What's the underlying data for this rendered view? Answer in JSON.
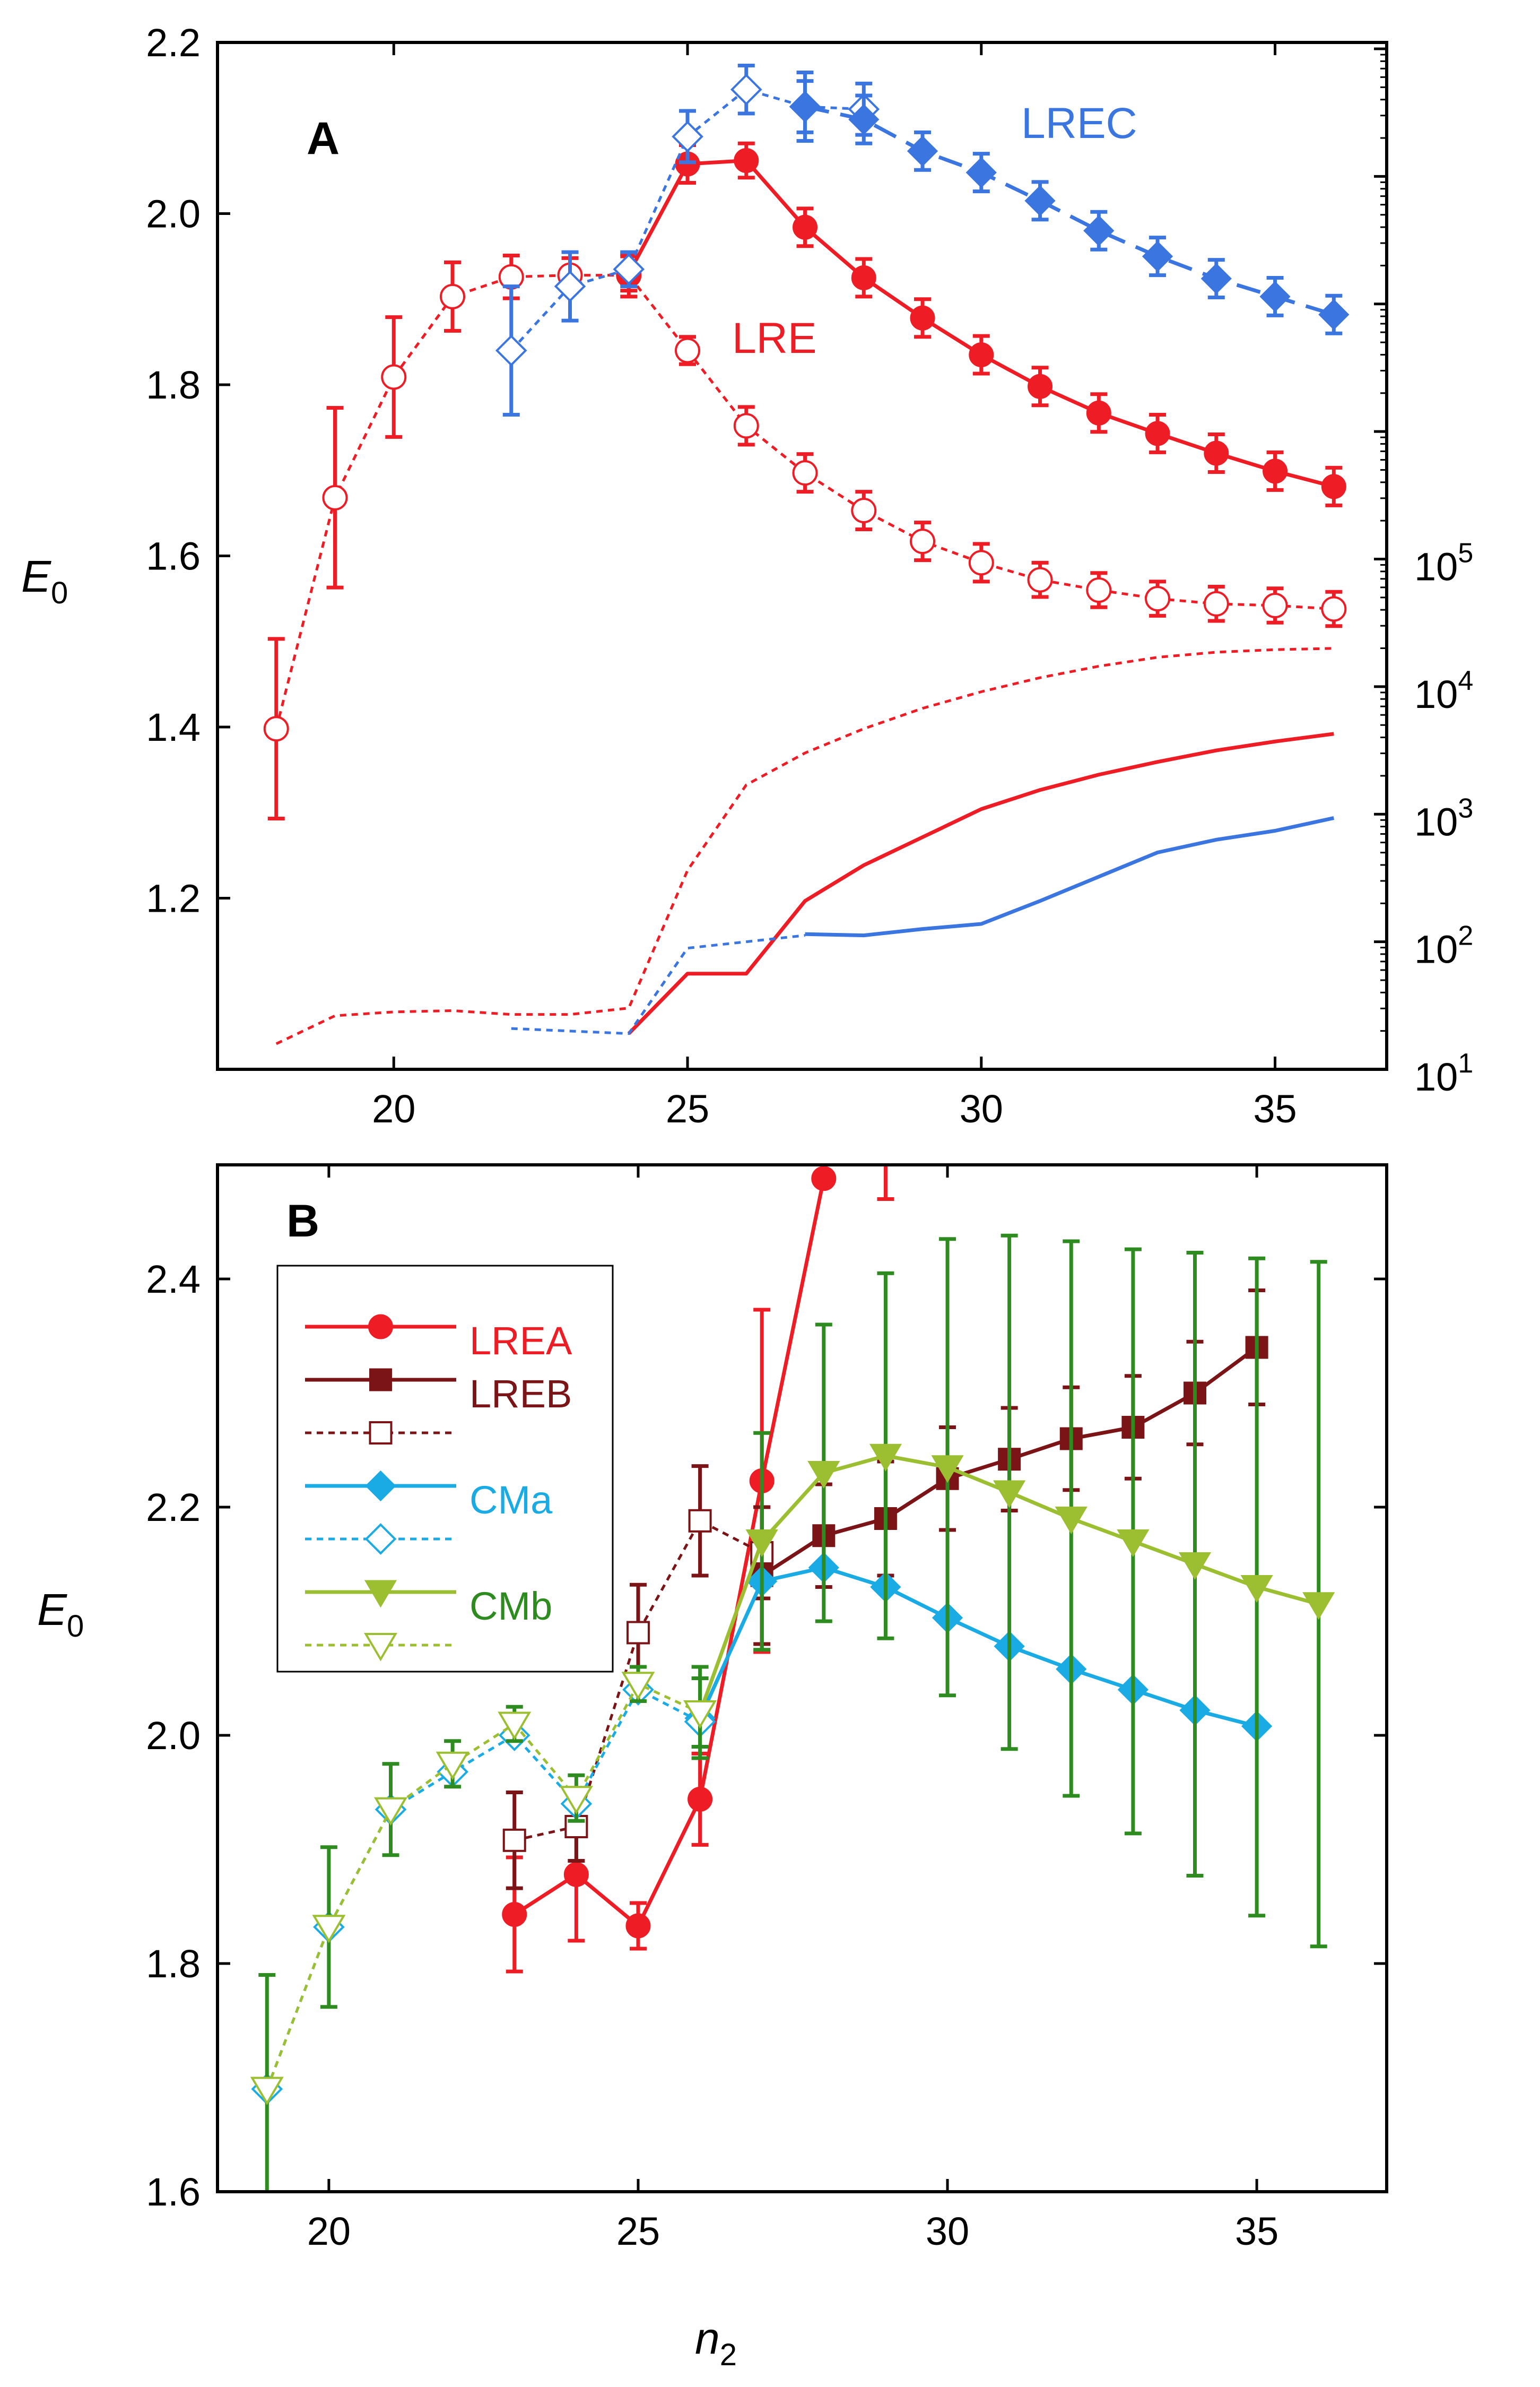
{
  "chart_data": [
    {
      "type": "line",
      "panel": "A",
      "title": "A",
      "xlabel": "",
      "ylabel": "E0",
      "ylabel_main": "E",
      "ylabel_sub": "0",
      "xlim": [
        17,
        36.9
      ],
      "ylim": [
        1.0,
        2.2
      ],
      "y2lim_log10": [
        1,
        9.05
      ],
      "x_ticks": [
        20,
        25,
        30,
        35
      ],
      "x_ticklabels": [
        "20",
        "25",
        "30",
        "35"
      ],
      "y_ticks": [
        1.2,
        1.4,
        1.6,
        1.8,
        2.0,
        2.2
      ],
      "y_ticklabels": [
        "1.2",
        "1.4",
        "1.6",
        "1.8",
        "2.0",
        "2.2"
      ],
      "y2_ticks": [
        {
          "exp": 1,
          "base": "10",
          "sup": "1"
        },
        {
          "exp": 2,
          "base": "10",
          "sup": "2"
        },
        {
          "exp": 3,
          "base": "10",
          "sup": "3"
        },
        {
          "exp": 4,
          "base": "10",
          "sup": "4"
        },
        {
          "exp": 5,
          "base": "10",
          "sup": "5"
        }
      ],
      "annotations": [
        {
          "text": "LRE",
          "x": 25.8,
          "y": 1.8,
          "color": "#ee1c24"
        },
        {
          "text": "LREC",
          "x": 30.7,
          "y": 2.1,
          "color": "#3a75e0"
        }
      ],
      "series": [
        {
          "name": "LRE open",
          "color": "#ee1c24",
          "dash": "dot",
          "marker": "circle-open",
          "x": [
            18,
            19,
            20,
            21,
            22,
            23,
            24,
            25,
            26,
            27,
            28,
            29,
            30,
            31,
            32,
            33,
            34,
            35,
            36
          ],
          "y": [
            1.398,
            1.668,
            1.809,
            1.903,
            1.926,
            1.928,
            1.928,
            1.84,
            1.752,
            1.697,
            1.653,
            1.617,
            1.592,
            1.572,
            1.56,
            1.55,
            1.544,
            1.542,
            1.538
          ],
          "err": [
            0.105,
            0.105,
            0.07,
            0.04,
            0.025,
            0.02,
            0.025,
            0.016,
            0.022,
            0.022,
            0.022,
            0.022,
            0.022,
            0.02,
            0.02,
            0.02,
            0.02,
            0.02,
            0.02
          ]
        },
        {
          "name": "LRE filled",
          "color": "#ee1c24",
          "dash": "solid",
          "marker": "circle",
          "x": [
            24,
            25,
            26,
            27,
            28,
            29,
            30,
            31,
            32,
            33,
            34,
            35,
            36
          ],
          "y": [
            1.93,
            2.058,
            2.062,
            1.984,
            1.925,
            1.878,
            1.835,
            1.798,
            1.767,
            1.743,
            1.72,
            1.699,
            1.681
          ],
          "err": [
            0.02,
            0.022,
            0.02,
            0.022,
            0.022,
            0.022,
            0.022,
            0.022,
            0.022,
            0.022,
            0.022,
            0.022,
            0.022
          ]
        },
        {
          "name": "LREC open",
          "color": "#3a75e0",
          "dash": "dot",
          "marker": "diamond-open",
          "x": [
            22,
            23,
            24,
            25,
            26,
            27,
            28
          ],
          "y": [
            1.84,
            1.915,
            1.935,
            2.09,
            2.145,
            2.125,
            2.122
          ],
          "err": [
            0.075,
            0.04,
            0.02,
            0.03,
            0.028,
            0.04,
            0.03
          ]
        },
        {
          "name": "LREC filled",
          "color": "#3a75e0",
          "dash": "dash",
          "marker": "diamond",
          "x": [
            27,
            28,
            29,
            30,
            31,
            32,
            33,
            34,
            35,
            36
          ],
          "y": [
            2.125,
            2.11,
            2.073,
            2.048,
            2.015,
            1.98,
            1.95,
            1.924,
            1.903,
            1.882
          ],
          "err": [
            0.03,
            0.028,
            0.022,
            0.022,
            0.022,
            0.022,
            0.022,
            0.022,
            0.022,
            0.022
          ]
        },
        {
          "name": "LRE count dotted (right axis)",
          "color": "#ee1c24",
          "dash": "dot",
          "marker": "none",
          "axis": "right-log",
          "x": [
            18,
            19,
            20,
            21,
            22,
            23,
            24,
            25,
            26,
            27,
            28,
            29,
            30,
            31,
            32,
            33,
            34,
            35,
            36
          ],
          "y_log10": [
            1.2,
            1.42,
            1.45,
            1.46,
            1.43,
            1.43,
            1.48,
            2.56,
            3.23,
            3.48,
            3.67,
            3.83,
            3.96,
            4.07,
            4.16,
            4.23,
            4.27,
            4.29,
            4.3
          ]
        },
        {
          "name": "LRE count solid (right axis)",
          "color": "#ee1c24",
          "dash": "solid",
          "marker": "none",
          "axis": "right-log",
          "x": [
            24,
            25,
            26,
            27,
            28,
            29,
            30,
            31,
            32,
            33,
            34,
            35,
            36
          ],
          "y_log10": [
            1.28,
            1.75,
            1.75,
            2.32,
            2.6,
            2.82,
            3.04,
            3.19,
            3.31,
            3.41,
            3.5,
            3.57,
            3.63
          ]
        },
        {
          "name": "LREC count dotted (right axis)",
          "color": "#3a75e0",
          "dash": "dot",
          "marker": "none",
          "axis": "right-log",
          "x": [
            22,
            23,
            24,
            25,
            26,
            27
          ],
          "y_log10": [
            1.32,
            1.3,
            1.28,
            1.95,
            2.0,
            2.05
          ]
        },
        {
          "name": "LREC count solid (right axis)",
          "color": "#3a75e0",
          "dash": "solid",
          "marker": "none",
          "axis": "right-log",
          "x": [
            27,
            28,
            29,
            30,
            31,
            32,
            33,
            34,
            35,
            36
          ],
          "y_log10": [
            2.06,
            2.05,
            2.1,
            2.14,
            2.32,
            2.51,
            2.7,
            2.8,
            2.87,
            2.97
          ]
        }
      ]
    },
    {
      "type": "line",
      "panel": "B",
      "title": "B",
      "xlabel": "n2",
      "xlabel_main": "n",
      "xlabel_sub": "2",
      "ylabel": "E0",
      "ylabel_main": "E",
      "ylabel_sub": "0",
      "xlim": [
        18.2,
        37.1
      ],
      "ylim": [
        1.6,
        2.5
      ],
      "x_ticks": [
        20,
        25,
        30,
        35
      ],
      "x_ticklabels": [
        "20",
        "25",
        "30",
        "35"
      ],
      "y_ticks": [
        1.6,
        1.8,
        2.0,
        2.2,
        2.4
      ],
      "y_ticklabels": [
        "1.6",
        "1.8",
        "2.0",
        "2.2",
        "2.4"
      ],
      "legend": [
        {
          "label": "LREA",
          "color": "#ee1c24",
          "text_color": "#ee1c24",
          "dash": "solid",
          "marker": "circle"
        },
        {
          "label": "LREB",
          "color": "#7b1416",
          "text_color": "#7b1416",
          "dash": "solid",
          "marker": "square"
        },
        {
          "label": "",
          "color": "#7b1416",
          "text_color": "#7b1416",
          "dash": "dot",
          "marker": "square-open"
        },
        {
          "label": "CMa",
          "color": "#1aabe5",
          "text_color": "#1aabe5",
          "dash": "solid",
          "marker": "diamond"
        },
        {
          "label": "",
          "color": "#1aabe5",
          "text_color": "#1aabe5",
          "dash": "dot",
          "marker": "diamond-open"
        },
        {
          "label": "CMb",
          "color": "#9bbf30",
          "text_color": "#2e8b1f",
          "dash": "solid",
          "marker": "triangle-down"
        },
        {
          "label": "",
          "color": "#9bbf30",
          "text_color": "#2e8b1f",
          "dash": "dot",
          "marker": "triangle-down-open"
        }
      ],
      "series": [
        {
          "name": "LREA",
          "color": "#ee1c24",
          "dash": "solid",
          "marker": "circle",
          "x": [
            23,
            24,
            25,
            26,
            27,
            28
          ],
          "y": [
            1.843,
            1.878,
            1.833,
            1.944,
            2.223,
            2.488
          ],
          "err": [
            0.05,
            0.058,
            0.02,
            0.04,
            0.15,
            null
          ]
        },
        {
          "name": "LREA (off-scale)",
          "color": "#ee1c24",
          "dash": "none",
          "marker": "none",
          "errbar_only": true,
          "x": [
            29
          ],
          "y_lo": 2.47,
          "y_hi": 2.52
        },
        {
          "name": "LREB filled",
          "color": "#7b1416",
          "dash": "solid",
          "marker": "square",
          "x": [
            27,
            28,
            29,
            30,
            31,
            32,
            33,
            34,
            35
          ],
          "y": [
            2.14,
            2.175,
            2.19,
            2.225,
            2.242,
            2.26,
            2.27,
            2.3,
            2.34
          ],
          "err": [
            0.06,
            0.045,
            0.05,
            0.045,
            0.045,
            0.045,
            0.045,
            0.045,
            0.05
          ]
        },
        {
          "name": "LREB open",
          "color": "#7b1416",
          "dash": "dot",
          "marker": "square-open",
          "x": [
            23,
            24,
            25,
            26,
            27
          ],
          "y": [
            1.908,
            1.92,
            2.09,
            2.188,
            2.16
          ],
          "err": [
            0.042,
            0.03,
            0.042,
            0.048,
            0.04
          ]
        },
        {
          "name": "CMa filled",
          "color": "#1aabe5",
          "dash": "solid",
          "marker": "diamond",
          "x": [
            26,
            27,
            28,
            29,
            30,
            31,
            32,
            33,
            34,
            35
          ],
          "y": [
            2.015,
            2.135,
            2.147,
            2.13,
            2.103,
            2.078,
            2.058,
            2.04,
            2.022,
            2.008
          ]
        },
        {
          "name": "CMa open",
          "color": "#1aabe5",
          "dash": "dot",
          "marker": "diamond-open",
          "x": [
            19,
            20,
            21,
            22,
            23,
            24,
            25,
            26
          ],
          "y": [
            1.69,
            1.832,
            1.935,
            1.968,
            2.0,
            1.94,
            2.04,
            2.012
          ]
        },
        {
          "name": "CMb filled",
          "color": "#9bbf30",
          "dash": "solid",
          "marker": "triangle-down",
          "x": [
            26,
            27,
            28,
            29,
            30,
            31,
            32,
            33,
            34,
            35,
            36
          ],
          "y": [
            2.02,
            2.17,
            2.23,
            2.245,
            2.235,
            2.213,
            2.19,
            2.17,
            2.15,
            2.13,
            2.115
          ],
          "err": [
            0.03,
            0.095,
            0.13,
            0.16,
            0.2,
            0.225,
            0.243,
            0.256,
            0.273,
            0.288,
            0.3
          ],
          "err_color": "#2e8b1f"
        },
        {
          "name": "CMb open",
          "color": "#9bbf30",
          "dash": "dot",
          "marker": "triangle-down-open",
          "x": [
            19,
            20,
            21,
            22,
            23,
            24,
            25,
            26
          ],
          "y": [
            1.69,
            1.832,
            1.935,
            1.975,
            2.01,
            1.945,
            2.045,
            2.02
          ],
          "err": [
            0.1,
            0.07,
            0.04,
            0.02,
            0.015,
            0.02,
            0.015,
            0.04
          ],
          "err_color": "#2e8b1f"
        }
      ]
    }
  ]
}
